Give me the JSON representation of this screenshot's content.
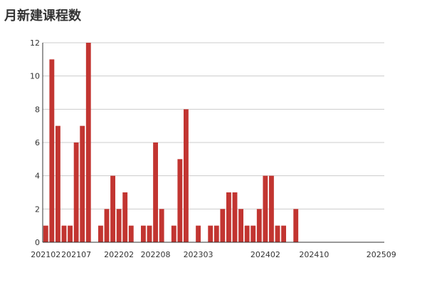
{
  "chart_data": {
    "type": "bar",
    "title": "月新建课程数",
    "xlabel": "",
    "ylabel": "",
    "ylim": [
      0,
      12
    ],
    "y_ticks": [
      0,
      2,
      4,
      6,
      8,
      10,
      12
    ],
    "grid": true,
    "bar_color": "#C23531",
    "categories": [
      "202102",
      "202103",
      "202104",
      "202105",
      "202106",
      "202107",
      "202108",
      "202109",
      "202110",
      "202111",
      "202112",
      "202201",
      "202202",
      "202203",
      "202204",
      "202205",
      "202206",
      "202207",
      "202208",
      "202209",
      "202210",
      "202211",
      "202212",
      "202301",
      "202302",
      "202303",
      "202304",
      "202305",
      "202306",
      "202307",
      "202308",
      "202309",
      "202310",
      "202311",
      "202312",
      "202401",
      "202402",
      "202403",
      "202404",
      "202405",
      "202406",
      "202407",
      "202408",
      "202409",
      "202410",
      "202411",
      "202412",
      "202501",
      "202502",
      "202503",
      "202504",
      "202505",
      "202506",
      "202507",
      "202508",
      "202509"
    ],
    "x_tick_labels": [
      "202102",
      "202107",
      "202202",
      "202208",
      "202303",
      "202402",
      "202410",
      "202509"
    ],
    "bars": [
      {
        "x": "202102",
        "value": 1
      },
      {
        "x": "202103",
        "value": 11
      },
      {
        "x": "202104",
        "value": 7
      },
      {
        "x": "202105",
        "value": 1
      },
      {
        "x": "202106",
        "value": 1
      },
      {
        "x": "202107",
        "value": 6
      },
      {
        "x": "202108",
        "value": 7
      },
      {
        "x": "202109",
        "value": 12
      },
      {
        "x": "202111",
        "value": 1
      },
      {
        "x": "202112",
        "value": 2
      },
      {
        "x": "202201",
        "value": 4
      },
      {
        "x": "202202",
        "value": 2
      },
      {
        "x": "202203",
        "value": 3
      },
      {
        "x": "202204",
        "value": 1
      },
      {
        "x": "202206",
        "value": 1
      },
      {
        "x": "202207",
        "value": 1
      },
      {
        "x": "202208",
        "value": 6
      },
      {
        "x": "202209",
        "value": 2
      },
      {
        "x": "202211",
        "value": 1
      },
      {
        "x": "202212",
        "value": 5
      },
      {
        "x": "202301",
        "value": 8
      },
      {
        "x": "202303",
        "value": 1
      },
      {
        "x": "202305",
        "value": 1
      },
      {
        "x": "202306",
        "value": 1
      },
      {
        "x": "202307",
        "value": 2
      },
      {
        "x": "202308",
        "value": 3
      },
      {
        "x": "202309",
        "value": 3
      },
      {
        "x": "202310",
        "value": 2
      },
      {
        "x": "202311",
        "value": 1
      },
      {
        "x": "202312",
        "value": 1
      },
      {
        "x": "202401",
        "value": 2
      },
      {
        "x": "202402",
        "value": 4
      },
      {
        "x": "202403",
        "value": 4
      },
      {
        "x": "202404",
        "value": 1
      },
      {
        "x": "202405",
        "value": 1
      },
      {
        "x": "202407",
        "value": 2
      }
    ]
  }
}
